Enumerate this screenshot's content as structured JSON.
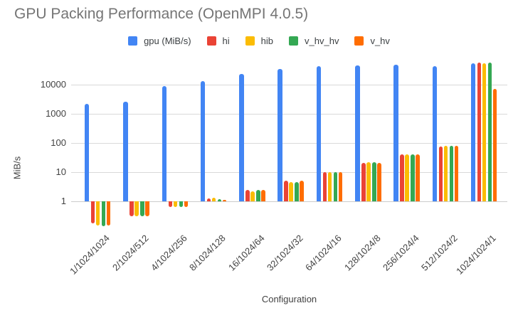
{
  "title": "GPU Packing Performance (OpenMPI 4.0.5)",
  "chart_data": {
    "type": "bar",
    "title": "GPU Packing Performance (OpenMPI 4.0.5)",
    "xlabel": "Configuration",
    "ylabel": "MiB/s",
    "yscale": "log",
    "grid": true,
    "legend_position": "top",
    "ytick_labels": [
      "1",
      "10",
      "100",
      "1000",
      "10000"
    ],
    "ytick_values": [
      1,
      10,
      100,
      1000,
      10000
    ],
    "ylim": [
      0.1,
      70000
    ],
    "categories": [
      "1/1024/1024",
      "2/1024/512",
      "4/1024/256",
      "8/1024/128",
      "16/1024/64",
      "32/1024/32",
      "64/1024/16",
      "128/1024/8",
      "256/1024/4",
      "512/1024/2",
      "1024/1024/1"
    ],
    "series": [
      {
        "name": "gpu (MiB/s)",
        "color": "#4285F4",
        "values": [
          2300,
          2700,
          8900,
          13500,
          24000,
          36000,
          43000,
          46000,
          50000,
          45000,
          55000
        ]
      },
      {
        "name": "hi",
        "color": "#EA4335",
        "values": [
          0.17,
          0.31,
          0.65,
          1.25,
          2.4,
          5.2,
          10,
          21,
          40,
          78,
          60000
        ]
      },
      {
        "name": "hib",
        "color": "#FBBC04",
        "values": [
          0.15,
          0.3,
          0.63,
          1.3,
          2.25,
          4.6,
          10,
          22,
          42,
          82,
          55000
        ]
      },
      {
        "name": "v_hv_hv",
        "color": "#34A853",
        "values": [
          0.14,
          0.31,
          0.64,
          1.2,
          2.5,
          4.7,
          10,
          22,
          42,
          79,
          60000
        ]
      },
      {
        "name": "v_hv",
        "color": "#FF6D01",
        "values": [
          0.15,
          0.3,
          0.65,
          1.15,
          2.4,
          5.2,
          10,
          21,
          42,
          82,
          7300
        ]
      }
    ]
  }
}
